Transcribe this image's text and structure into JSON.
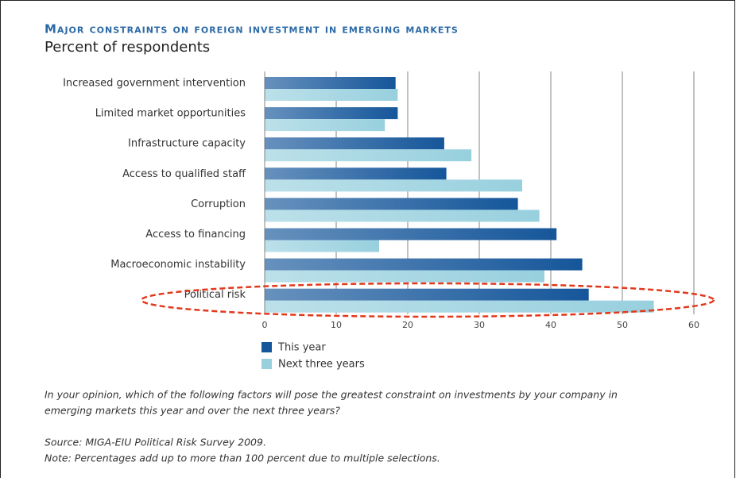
{
  "chart_data": {
    "type": "hbar",
    "title": "Major constraints on foreign investment in emerging markets",
    "subtitle": "Percent of respondents",
    "categories": [
      "Increased government intervention",
      "Limited market opportunities",
      "Infrastructure capacity",
      "Access to qualified staff",
      "Corruption",
      "Access to financing",
      "Macroeconomic instability",
      "Political risk"
    ],
    "series": [
      {
        "name": "This year",
        "color": "#15569a",
        "values": [
          18.3,
          18.6,
          25.1,
          25.4,
          35.4,
          40.8,
          44.4,
          45.3
        ]
      },
      {
        "name": "Next three years",
        "color": "#98d0de",
        "values": [
          18.6,
          16.8,
          28.9,
          36,
          38.4,
          16,
          39.1,
          54.4
        ]
      }
    ],
    "xlim": [
      0,
      60
    ],
    "xticks": [
      0,
      10,
      20,
      30,
      40,
      50,
      60
    ],
    "grid": true,
    "annotations": [
      "In your opinion, which of the following factors will pose the greatest constraint on investments by your company in",
      "emerging markets this year and over the next three years?",
      "Source: MIGA-EIU Political Risk Survey 2009.",
      "Note: Percentages add up to more than 100 percent due to multiple selections."
    ]
  }
}
